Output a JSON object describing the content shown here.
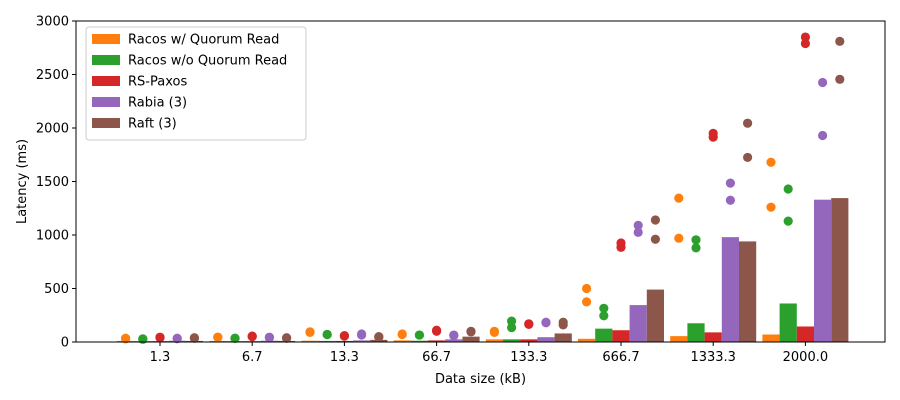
{
  "chart_data": {
    "type": "bar",
    "xlabel": "Data size (kB)",
    "ylabel": "Latency (ms)",
    "ylim": [
      0,
      3000
    ],
    "yticks": [
      0,
      500,
      1000,
      1500,
      2000,
      2500,
      3000
    ],
    "categories": [
      "1.3",
      "6.7",
      "13.3",
      "66.7",
      "133.3",
      "666.7",
      "1333.3",
      "2000.0"
    ],
    "legend_position": "upper-left",
    "grid": false,
    "series": [
      {
        "name": "Racos w/ Quorum Read",
        "color": "#ff7f0e",
        "values": [
          10,
          10,
          12,
          15,
          25,
          30,
          55,
          70
        ],
        "points": [
          [
            35,
            30
          ],
          [
            45,
            45
          ],
          [
            90,
            95
          ],
          [
            75,
            70
          ],
          [
            90,
            100
          ],
          [
            500,
            375
          ],
          [
            1345,
            970
          ],
          [
            1680,
            1260
          ]
        ]
      },
      {
        "name": "Racos w/o Quorum Read",
        "color": "#2ca02c",
        "values": [
          8,
          8,
          10,
          12,
          25,
          125,
          175,
          360
        ],
        "points": [
          [
            30,
            25
          ],
          [
            35,
            35
          ],
          [
            70,
            70
          ],
          [
            65,
            65
          ],
          [
            195,
            135
          ],
          [
            315,
            245
          ],
          [
            955,
            880
          ],
          [
            1430,
            1130
          ]
        ]
      },
      {
        "name": "RS-Paxos",
        "color": "#d62728",
        "values": [
          8,
          8,
          10,
          15,
          25,
          110,
          90,
          145
        ],
        "points": [
          [
            45,
            40
          ],
          [
            50,
            55
          ],
          [
            55,
            60
          ],
          [
            110,
            100
          ],
          [
            170,
            165
          ],
          [
            925,
            885
          ],
          [
            1950,
            1915
          ],
          [
            2850,
            2790
          ]
        ]
      },
      {
        "name": "Rabia (3)",
        "color": "#9467bd",
        "values": [
          12,
          12,
          15,
          25,
          45,
          345,
          980,
          1330
        ],
        "points": [
          [
            35,
            30
          ],
          [
            45,
            40
          ],
          [
            75,
            65
          ],
          [
            65,
            60
          ],
          [
            185,
            180
          ],
          [
            1090,
            1025
          ],
          [
            1485,
            1325
          ],
          [
            2425,
            1930
          ]
        ]
      },
      {
        "name": "Raft (3)",
        "color": "#8c564b",
        "values": [
          10,
          10,
          20,
          50,
          80,
          490,
          940,
          1345
        ],
        "points": [
          [
            40,
            35
          ],
          [
            40,
            35
          ],
          [
            50,
            45
          ],
          [
            100,
            95
          ],
          [
            185,
            160
          ],
          [
            1140,
            960
          ],
          [
            2045,
            1725
          ],
          [
            2810,
            2455
          ]
        ]
      }
    ]
  }
}
